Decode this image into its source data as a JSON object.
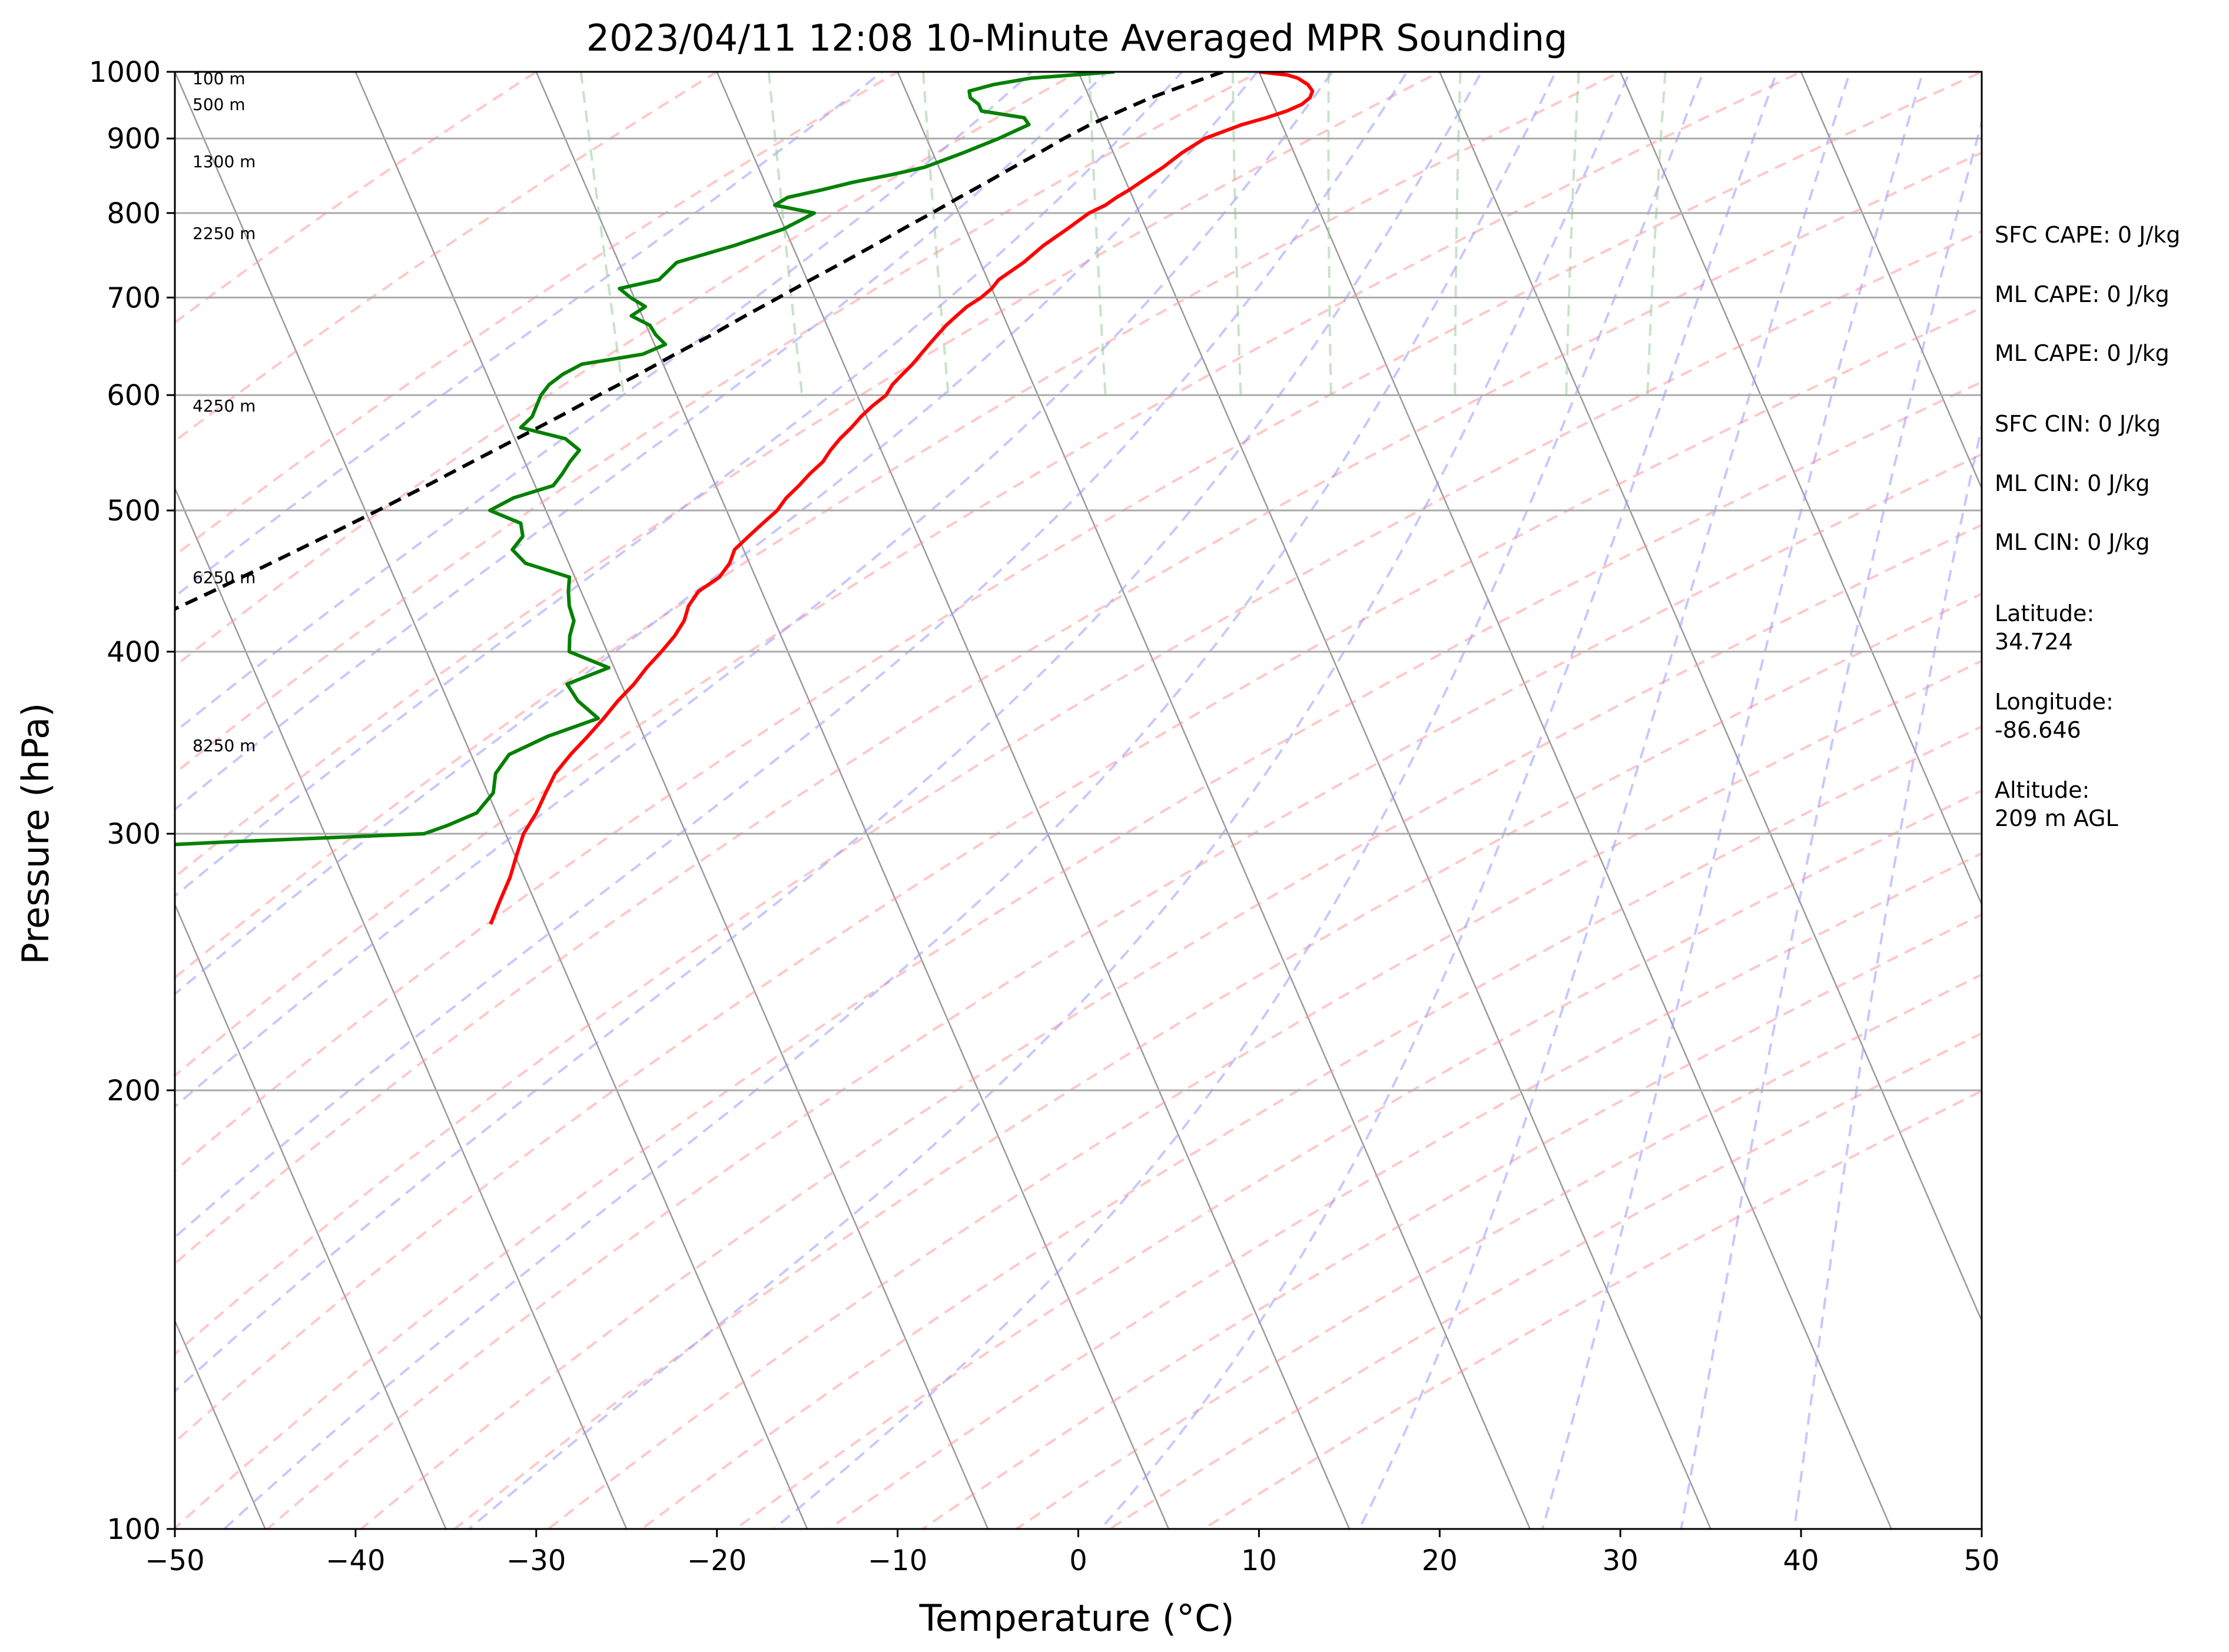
{
  "chart_data": {
    "type": "line",
    "title": "2023/04/11 12:08 10-Minute Averaged MPR Sounding",
    "xlabel": "Temperature (°C)",
    "ylabel": "Pressure (hPa)",
    "xlim": [
      -50,
      50
    ],
    "ylim": [
      1000,
      100
    ],
    "yscale": "log",
    "grid": true,
    "x_ticks": [
      "−50",
      "−40",
      "−30",
      "−20",
      "−10",
      "0",
      "10",
      "20",
      "30",
      "40",
      "50"
    ],
    "y_ticks": [
      "100",
      "200",
      "300",
      "400",
      "500",
      "600",
      "700",
      "800",
      "900",
      "1000"
    ],
    "skew": 35,
    "colors": {
      "temperature": "#ff0000",
      "dewpoint": "#008000",
      "parcel": "#000000",
      "dry_adiabats": "#ff9999",
      "moist_adiabats": "#9999ff",
      "mixing_ratio": "#99cc99",
      "isotherms": "#999999"
    },
    "series": [
      {
        "id": "temperature",
        "p": [
          1000,
          995,
          990,
          980,
          970,
          960,
          950,
          940,
          930,
          920,
          900,
          880,
          860,
          840,
          830,
          820,
          810,
          800,
          780,
          760,
          740,
          720,
          710,
          700,
          690,
          680,
          670,
          660,
          650,
          640,
          630,
          620,
          610,
          600,
          590,
          580,
          570,
          560,
          550,
          540,
          530,
          520,
          510,
          500,
          490,
          480,
          470,
          460,
          450,
          440,
          430,
          420,
          410,
          400,
          390,
          380,
          370,
          360,
          350,
          340,
          330,
          320,
          310,
          300,
          290,
          280,
          270,
          260
        ],
        "t": [
          10.0,
          11.5,
          12.0,
          12.4,
          12.5,
          12.2,
          11.6,
          10.6,
          9.3,
          7.8,
          5.4,
          3.8,
          2.4,
          0.8,
          0.0,
          -0.9,
          -1.7,
          -2.8,
          -4.4,
          -6.1,
          -7.6,
          -9.4,
          -10.0,
          -10.8,
          -11.8,
          -12.6,
          -13.4,
          -14.1,
          -14.8,
          -15.5,
          -16.2,
          -17.0,
          -17.8,
          -18.4,
          -19.4,
          -20.3,
          -21.1,
          -22.0,
          -22.8,
          -23.5,
          -24.5,
          -25.4,
          -26.4,
          -27.2,
          -28.3,
          -29.4,
          -30.5,
          -31.1,
          -32.0,
          -33.5,
          -34.4,
          -35.0,
          -35.9,
          -37.0,
          -38.2,
          -39.3,
          -40.6,
          -41.8,
          -43.1,
          -44.5,
          -45.8,
          -46.8,
          -47.8,
          -49.0,
          -49.9,
          -50.8,
          -51.9,
          -53.0
        ]
      },
      {
        "id": "dewpoint",
        "p": [
          1000,
          990,
          980,
          970,
          960,
          950,
          940,
          930,
          920,
          910,
          900,
          880,
          860,
          850,
          840,
          830,
          820,
          810,
          800,
          780,
          760,
          740,
          720,
          710,
          700,
          690,
          680,
          670,
          660,
          650,
          640,
          630,
          620,
          610,
          600,
          590,
          580,
          570,
          560,
          550,
          540,
          530,
          520,
          510,
          500,
          490,
          480,
          470,
          460,
          450,
          440,
          430,
          420,
          410,
          400,
          390,
          380,
          370,
          360,
          350,
          340,
          330,
          320,
          310,
          304,
          300,
          296,
          292,
          290,
          288
        ],
        "t": [
          2.0,
          -2.8,
          -5.0,
          -6.5,
          -6.6,
          -6.3,
          -6.3,
          -4.1,
          -4.0,
          -5.0,
          -6.0,
          -8.3,
          -10.8,
          -12.8,
          -15.1,
          -17.0,
          -19.1,
          -20.0,
          -18.0,
          -20.1,
          -23.2,
          -26.8,
          -28.2,
          -30.6,
          -30.2,
          -29.6,
          -30.6,
          -29.8,
          -29.7,
          -29.4,
          -30.9,
          -34.5,
          -35.8,
          -36.8,
          -37.5,
          -38.0,
          -38.5,
          -39.4,
          -37.2,
          -36.7,
          -37.5,
          -38.2,
          -39.0,
          -41.5,
          -43.1,
          -41.7,
          -41.9,
          -42.8,
          -42.4,
          -40.3,
          -40.7,
          -41.0,
          -41.1,
          -41.7,
          -42.1,
          -40.3,
          -43.0,
          -42.8,
          -42.1,
          -45.3,
          -47.9,
          -49.1,
          -49.7,
          -51.1,
          -53.0,
          -54.5,
          -66.0,
          -76.0,
          -82.0,
          -96.0
        ]
      },
      {
        "id": "parcel",
        "p": [
          1000,
          980,
          960,
          940,
          920,
          900,
          880,
          860,
          840,
          820,
          800,
          780,
          760,
          740,
          720,
          700,
          680,
          660,
          640,
          620,
          600,
          580,
          560,
          540,
          520,
          500,
          480,
          460,
          440,
          420,
          400,
          380,
          360,
          340,
          320,
          300,
          290,
          280,
          270,
          260
        ],
        "t": [
          8.0,
          5.7,
          3.4,
          1.4,
          -0.6,
          -2.4,
          -4.1,
          -5.9,
          -7.7,
          -9.6,
          -11.5,
          -13.5,
          -15.5,
          -17.6,
          -19.8,
          -22.0,
          -24.3,
          -26.6,
          -29.1,
          -31.6,
          -34.3,
          -37.0,
          -39.9,
          -42.9,
          -46.0,
          -49.3,
          -52.8,
          -56.5,
          -60.4,
          -64.6,
          -69.0,
          -73.7,
          -78.7,
          -84.1,
          -89.9,
          -96.1,
          -99.5,
          -103.0,
          -106.5,
          -110.2
        ]
      }
    ],
    "height_labels": [
      {
        "text": "100 m",
        "p": 990
      },
      {
        "text": "500 m",
        "p": 950
      },
      {
        "text": "1300 m",
        "p": 868
      },
      {
        "text": "2250 m",
        "p": 775
      },
      {
        "text": "4250 m",
        "p": 590
      },
      {
        "text": "6250 m",
        "p": 450
      },
      {
        "text": "8250 m",
        "p": 345
      }
    ]
  },
  "info": {
    "sfc_cape": "SFC CAPE: 0 J/kg",
    "ml_cape_1": "ML CAPE: 0 J/kg",
    "ml_cape_2": "ML CAPE: 0 J/kg",
    "sfc_cin": "SFC CIN: 0 J/kg",
    "ml_cin_1": "ML CIN: 0 J/kg",
    "ml_cin_2": "ML CIN: 0 J/kg",
    "latitude": "Latitude:\n34.724",
    "longitude": "Longitude:\n-86.646",
    "altitude": "Altitude:\n209 m AGL"
  }
}
